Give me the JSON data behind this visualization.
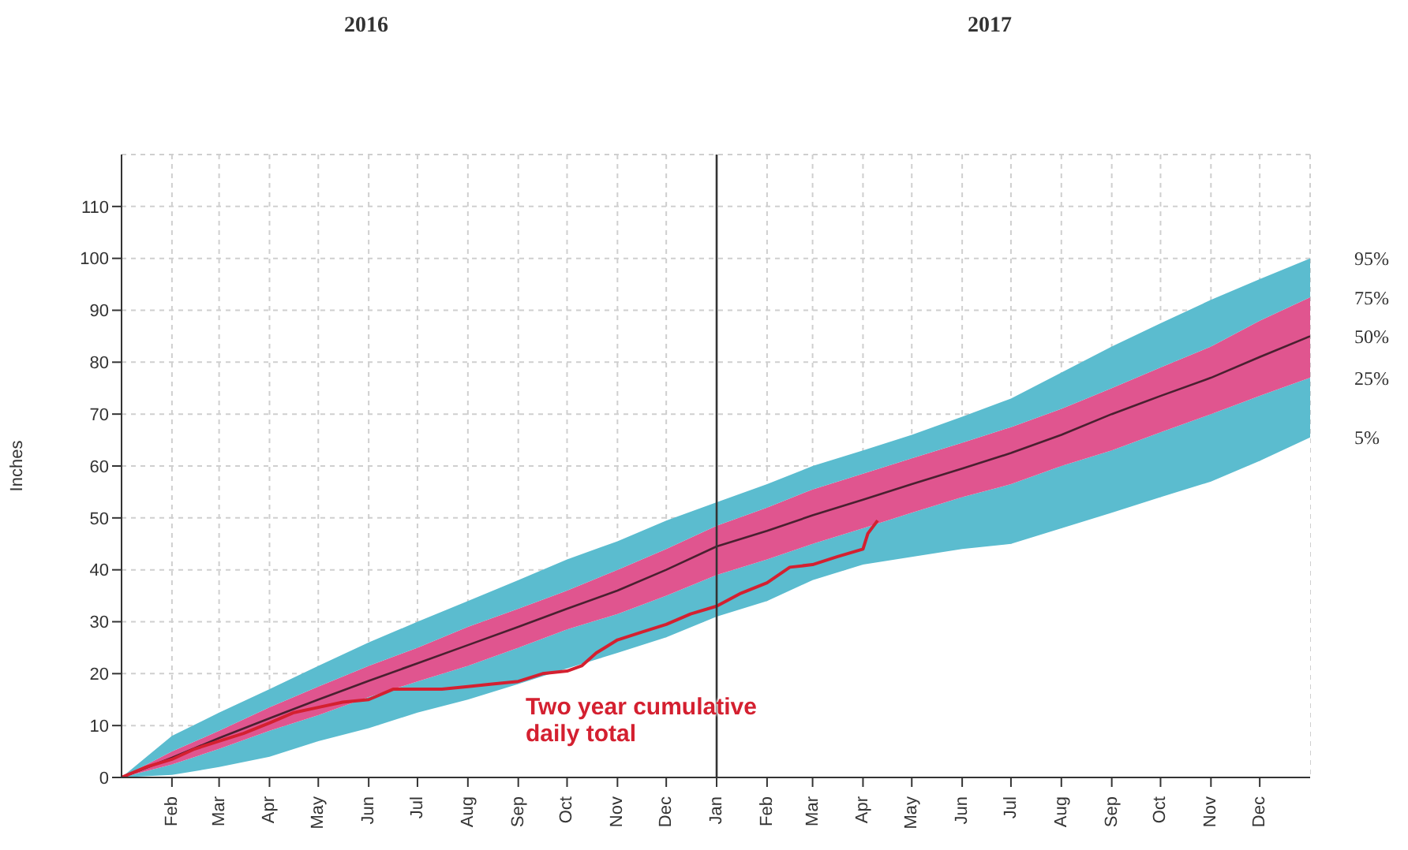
{
  "chart_data": {
    "type": "line",
    "ylabel": "Inches",
    "stacked": true,
    "x": [
      "2016-01",
      "2016-02",
      "2016-03",
      "2016-04",
      "2016-05",
      "2016-06",
      "2016-07",
      "2016-08",
      "2016-09",
      "2016-10",
      "2016-11",
      "2016-12",
      "2017-01",
      "2017-02",
      "2017-03",
      "2017-04",
      "2017-05",
      "2017-06",
      "2017-07",
      "2017-08",
      "2017-09",
      "2017-10",
      "2017-11",
      "2017-12",
      "2018-01"
    ],
    "series": [
      {
        "type": "area",
        "color": "#ffffff",
        "values": [
          0,
          0.5,
          2,
          4,
          7,
          9.5,
          12.5,
          15,
          18,
          21,
          24,
          27,
          31,
          34,
          38,
          41,
          42.5,
          44,
          45,
          48,
          51,
          54,
          57,
          61,
          65.5
        ]
      },
      {
        "type": "area",
        "color": "#5bbccf",
        "values": [
          0,
          2,
          3.5,
          5,
          5,
          6,
          6,
          6.5,
          7,
          7.5,
          7.5,
          8,
          8,
          8,
          7,
          7,
          8.5,
          10,
          11.5,
          12,
          12,
          12.5,
          13,
          12.5,
          11.5
        ]
      },
      {
        "type": "area",
        "color": "#e0558f",
        "values": [
          0,
          2.5,
          3.5,
          4.5,
          5.5,
          6,
          6.5,
          7.5,
          7.5,
          7.5,
          8.5,
          9,
          9.5,
          10,
          10.5,
          10.5,
          10.5,
          10.5,
          11,
          11,
          12,
          12.5,
          13,
          14.5,
          15.5
        ]
      },
      {
        "type": "area",
        "color": "#5bbccf",
        "values": [
          0,
          3,
          3.5,
          3.5,
          4,
          4.5,
          5,
          5,
          5.5,
          6,
          5.5,
          5.5,
          4.5,
          4.5,
          4.5,
          4.5,
          4.5,
          5,
          5.5,
          7,
          8,
          8.5,
          9,
          8,
          7.5
        ]
      },
      {
        "color": "#4a2030",
        "values": [
          0,
          3.8,
          7.6,
          11.4,
          15,
          18.6,
          22,
          25.5,
          29,
          32.5,
          36,
          40,
          44.5,
          47.5,
          50.5,
          53.5,
          56.5,
          59.5,
          62.5,
          66,
          70,
          73.5,
          77,
          81,
          85
        ]
      },
      {
        "name": "Two year cumulative daily total",
        "color": "#d42030",
        "x": [
          "2016-01-01",
          "2016-01-16",
          "2016-02-01",
          "2016-02-15",
          "2016-03-01",
          "2016-03-16",
          "2016-04-01",
          "2016-04-16",
          "2016-05-01",
          "2016-05-16",
          "2016-06-01",
          "2016-06-16",
          "2016-07-01",
          "2016-07-16",
          "2016-08-01",
          "2016-08-16",
          "2016-09-01",
          "2016-09-16",
          "2016-10-01",
          "2016-10-10",
          "2016-10-19",
          "2016-11-01",
          "2016-11-16",
          "2016-12-01",
          "2016-12-16",
          "2017-01-01",
          "2017-01-16",
          "2017-02-01",
          "2017-02-15",
          "2017-03-01",
          "2017-03-16",
          "2017-04-01",
          "2017-04-04",
          "2017-04-10"
        ],
        "values": [
          0,
          2,
          3.5,
          5.5,
          7,
          8.5,
          10.5,
          12.5,
          13.5,
          14.5,
          15,
          17,
          17,
          17,
          17.5,
          18,
          18.5,
          20,
          20.5,
          21.5,
          24,
          26.5,
          28,
          29.5,
          31.5,
          33,
          35.5,
          37.5,
          40.5,
          41,
          42.5,
          44,
          47,
          49.5
        ]
      }
    ],
    "xlim": [
      "2016-01",
      "2018-01"
    ],
    "xticks": [
      {
        "value": "2016-02",
        "label": "Feb"
      },
      {
        "value": "2016-03",
        "label": "Mar"
      },
      {
        "value": "2016-04",
        "label": "Apr"
      },
      {
        "value": "2016-05",
        "label": "May"
      },
      {
        "value": "2016-06",
        "label": "Jun"
      },
      {
        "value": "2016-07",
        "label": "Jul"
      },
      {
        "value": "2016-08",
        "label": "Aug"
      },
      {
        "value": "2016-09",
        "label": "Sep"
      },
      {
        "value": "2016-10",
        "label": "Oct"
      },
      {
        "value": "2016-11",
        "label": "Nov"
      },
      {
        "value": "2016-12",
        "label": "Dec"
      },
      {
        "value": "2017-01",
        "label": "Jan"
      },
      {
        "value": "2017-02",
        "label": "Feb"
      },
      {
        "value": "2017-03",
        "label": "Mar"
      },
      {
        "value": "2017-04",
        "label": "Apr"
      },
      {
        "value": "2017-05",
        "label": "May"
      },
      {
        "value": "2017-06",
        "label": "Jun"
      },
      {
        "value": "2017-07",
        "label": "Jul"
      },
      {
        "value": "2017-08",
        "label": "Aug"
      },
      {
        "value": "2017-09",
        "label": "Sep"
      },
      {
        "value": "2017-10",
        "label": "Oct"
      },
      {
        "value": "2017-11",
        "label": "Nov"
      },
      {
        "value": "2017-12",
        "label": "Dec"
      }
    ],
    "ylim": [
      0,
      120
    ],
    "yticks": [
      0,
      10,
      20,
      30,
      40,
      50,
      60,
      70,
      80,
      90,
      100,
      110
    ],
    "ref_lines": [
      {
        "axis": "x",
        "value": "2017-01",
        "color": "#333333"
      }
    ],
    "annotations": [
      "2016",
      "2017",
      {
        "text": "95%",
        "x": "2018-01",
        "y": 100
      },
      {
        "text": "75%",
        "x": "2018-01",
        "y": 92.5
      },
      {
        "text": "50%",
        "x": "2018-01",
        "y": 85
      },
      {
        "text": "25%",
        "x": "2018-01",
        "y": 77
      },
      {
        "text": "5%",
        "x": "2018-01",
        "y": 65.5
      }
    ],
    "grid": true
  }
}
